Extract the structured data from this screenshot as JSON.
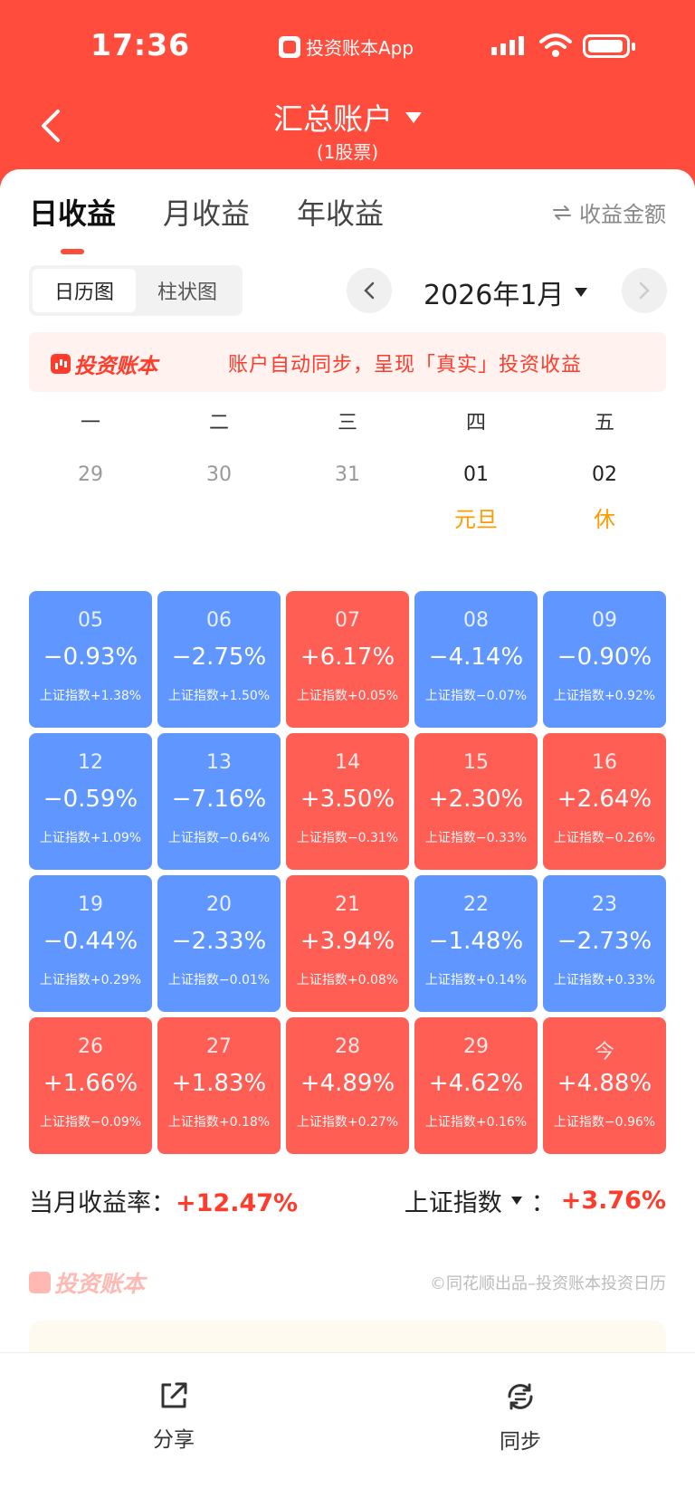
{
  "status": {
    "time": "17:36",
    "app_label": "投资账本App"
  },
  "nav": {
    "title": "汇总账户",
    "subtitle": "(1股票)"
  },
  "tabs": [
    "日收益",
    "月收益",
    "年收益"
  ],
  "metric_toggle": "收益金额",
  "segment": [
    "日历图",
    "柱状图"
  ],
  "month": "2026年1月",
  "banner": {
    "logo": "投资账本",
    "text": "账户自动同步，呈现「真实」投资收益"
  },
  "weekdays": [
    "一",
    "二",
    "三",
    "四",
    "五"
  ],
  "first_row": [
    {
      "day": "29",
      "note": ""
    },
    {
      "day": "30",
      "note": ""
    },
    {
      "day": "31",
      "note": ""
    },
    {
      "day": "01",
      "note": "元旦"
    },
    {
      "day": "02",
      "note": "休"
    }
  ],
  "cells": [
    {
      "day": "05",
      "pct": "−0.93%",
      "idx": "上证指数+1.38%",
      "trend": "down"
    },
    {
      "day": "06",
      "pct": "−2.75%",
      "idx": "上证指数+1.50%",
      "trend": "down"
    },
    {
      "day": "07",
      "pct": "+6.17%",
      "idx": "上证指数+0.05%",
      "trend": "up"
    },
    {
      "day": "08",
      "pct": "−4.14%",
      "idx": "上证指数−0.07%",
      "trend": "down"
    },
    {
      "day": "09",
      "pct": "−0.90%",
      "idx": "上证指数+0.92%",
      "trend": "down"
    },
    {
      "day": "12",
      "pct": "−0.59%",
      "idx": "上证指数+1.09%",
      "trend": "down"
    },
    {
      "day": "13",
      "pct": "−7.16%",
      "idx": "上证指数−0.64%",
      "trend": "down"
    },
    {
      "day": "14",
      "pct": "+3.50%",
      "idx": "上证指数−0.31%",
      "trend": "up"
    },
    {
      "day": "15",
      "pct": "+2.30%",
      "idx": "上证指数−0.33%",
      "trend": "up"
    },
    {
      "day": "16",
      "pct": "+2.64%",
      "idx": "上证指数−0.26%",
      "trend": "up"
    },
    {
      "day": "19",
      "pct": "−0.44%",
      "idx": "上证指数+0.29%",
      "trend": "down"
    },
    {
      "day": "20",
      "pct": "−2.33%",
      "idx": "上证指数−0.01%",
      "trend": "down"
    },
    {
      "day": "21",
      "pct": "+3.94%",
      "idx": "上证指数+0.08%",
      "trend": "up"
    },
    {
      "day": "22",
      "pct": "−1.48%",
      "idx": "上证指数+0.14%",
      "trend": "down"
    },
    {
      "day": "23",
      "pct": "−2.73%",
      "idx": "上证指数+0.33%",
      "trend": "down"
    },
    {
      "day": "26",
      "pct": "+1.66%",
      "idx": "上证指数−0.09%",
      "trend": "up"
    },
    {
      "day": "27",
      "pct": "+1.83%",
      "idx": "上证指数+0.18%",
      "trend": "up"
    },
    {
      "day": "28",
      "pct": "+4.89%",
      "idx": "上证指数+0.27%",
      "trend": "up"
    },
    {
      "day": "29",
      "pct": "+4.62%",
      "idx": "上证指数+0.16%",
      "trend": "up"
    },
    {
      "day": "今",
      "pct": "+4.88%",
      "idx": "上证指数−0.96%",
      "trend": "up"
    }
  ],
  "summary": {
    "month_label": "当月收益率：",
    "month_value": "+12.47%",
    "index_label": "上证指数",
    "index_sep": "：",
    "index_value": "+3.76%"
  },
  "footer": {
    "brand": "投资账本",
    "copyright": "©同花顺出品–投资账本投资日历"
  },
  "bottom": {
    "share": "分享",
    "sync": "同步"
  },
  "colors": {
    "brand_red": "#ff4c3c",
    "up": "#ff5e55",
    "down": "#6096ff",
    "holiday": "#ff9a00"
  }
}
